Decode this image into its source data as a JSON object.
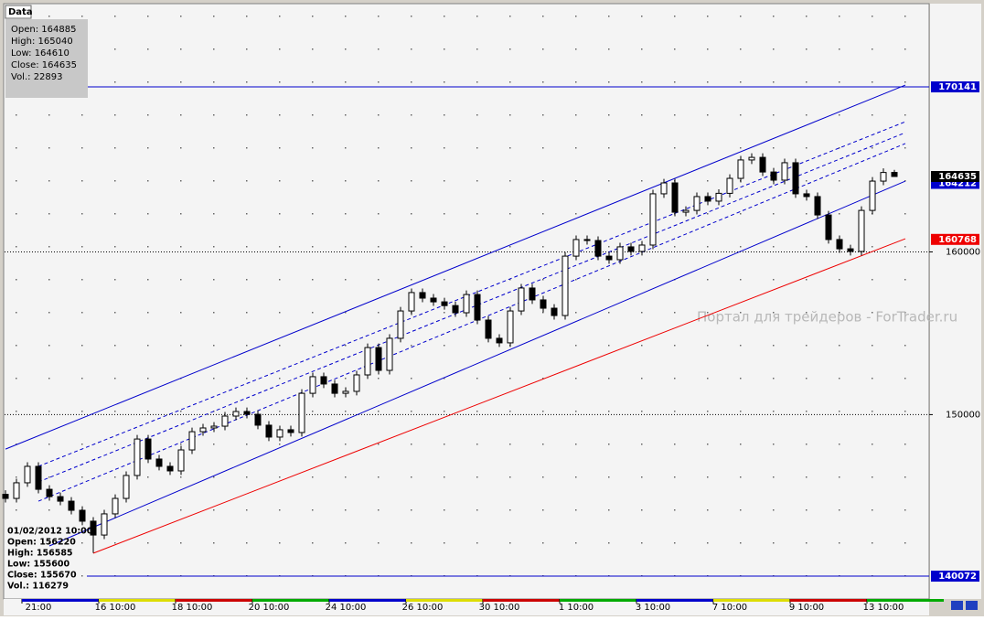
{
  "chart_data": {
    "type": "candlestick",
    "categories": [
      null,
      null,
      null,
      "21:00",
      null,
      null,
      null,
      null,
      null,
      null,
      "16 10:00",
      null,
      null,
      null,
      null,
      null,
      null,
      "18 10:00",
      null,
      null,
      null,
      null,
      null,
      null,
      "20 10:00",
      null,
      null,
      null,
      null,
      null,
      null,
      "24 10:00",
      null,
      null,
      null,
      null,
      null,
      null,
      "26 10:00",
      null,
      null,
      null,
      null,
      null,
      null,
      "30 10:00",
      null,
      null,
      null,
      null,
      null,
      null,
      "1 10:00",
      null,
      null,
      null,
      null,
      null,
      null,
      "3 10:00",
      null,
      null,
      null,
      null,
      null,
      null,
      "7 10:00",
      null,
      null,
      null,
      null,
      null,
      null,
      "9 10:00",
      null,
      null,
      null,
      null,
      null,
      null,
      "13 10:00",
      null
    ],
    "open": [
      145100,
      144850,
      145810,
      146820,
      145410,
      144960,
      144680,
      144120,
      143450,
      142600,
      143900,
      144850,
      146260,
      148500,
      147270,
      146820,
      146540,
      147830,
      148950,
      149180,
      149290,
      149910,
      150190,
      150020,
      149350,
      148620,
      149070,
      148900,
      151310,
      152330,
      151880,
      151310,
      151430,
      152440,
      154120,
      152720,
      154690,
      156370,
      157500,
      157160,
      156930,
      156700,
      156260,
      157380,
      155810,
      154690,
      154410,
      156370,
      157780,
      157050,
      156540,
      156090,
      159740,
      160760,
      160700,
      159740,
      159520,
      160310,
      160030,
      160420,
      163570,
      164240,
      162440,
      162550,
      163400,
      163120,
      163600,
      164520,
      165650,
      165810,
      164910,
      164410,
      165480,
      163570,
      163400,
      162270,
      160760,
      160190,
      160030,
      162550,
      164350,
      164885
    ],
    "high": [
      145350,
      146060,
      147070,
      147070,
      145660,
      145210,
      144930,
      144370,
      143700,
      144150,
      145100,
      146510,
      148750,
      148750,
      147520,
      147070,
      148080,
      149200,
      149430,
      149540,
      150160,
      150440,
      150440,
      150270,
      149600,
      149320,
      149320,
      151560,
      152580,
      152580,
      152130,
      151680,
      152690,
      154370,
      154370,
      154940,
      156620,
      157750,
      157750,
      157410,
      157180,
      156950,
      157630,
      157630,
      156060,
      154940,
      156620,
      158030,
      158030,
      157300,
      156790,
      159990,
      161010,
      161010,
      160950,
      159990,
      160560,
      160560,
      160670,
      163820,
      164490,
      164490,
      162800,
      163650,
      163650,
      163850,
      164770,
      165900,
      166060,
      166060,
      165160,
      165730,
      165730,
      163820,
      163650,
      162520,
      161010,
      160440,
      162800,
      164600,
      165130,
      165040
    ],
    "low": [
      144600,
      144600,
      145560,
      145160,
      144710,
      144430,
      143870,
      143200,
      141500,
      142350,
      143650,
      144600,
      146010,
      147020,
      146570,
      146290,
      146290,
      147580,
      148700,
      148930,
      149040,
      149660,
      149770,
      149100,
      148370,
      148370,
      148650,
      148650,
      151060,
      151630,
      151060,
      151060,
      151180,
      152190,
      152470,
      152470,
      154440,
      156120,
      156910,
      156680,
      156450,
      156010,
      156010,
      155560,
      154440,
      154160,
      154160,
      156120,
      156800,
      156290,
      155840,
      155840,
      159490,
      160450,
      159490,
      159270,
      159270,
      159780,
      159780,
      160170,
      163320,
      162190,
      162190,
      162300,
      162870,
      162870,
      163350,
      164270,
      165400,
      164660,
      164160,
      164160,
      163320,
      163150,
      162020,
      160510,
      159940,
      159780,
      159780,
      162300,
      164100,
      164610
    ],
    "close": [
      144850,
      145810,
      146820,
      145410,
      144960,
      144680,
      144120,
      143450,
      142600,
      143900,
      144850,
      146260,
      148500,
      147270,
      146820,
      146540,
      147830,
      148950,
      149180,
      149290,
      149910,
      150190,
      150020,
      149350,
      148620,
      149070,
      148900,
      151310,
      152330,
      151880,
      151310,
      151430,
      152440,
      154120,
      152720,
      154690,
      156370,
      157500,
      157160,
      156930,
      156700,
      156260,
      157380,
      155810,
      154690,
      154410,
      156370,
      157780,
      157050,
      156540,
      156090,
      159740,
      160760,
      160700,
      159740,
      159520,
      160310,
      160030,
      160420,
      163570,
      164240,
      162440,
      162550,
      163400,
      163120,
      163600,
      164520,
      165650,
      165810,
      164910,
      164410,
      165480,
      163570,
      163400,
      162270,
      160760,
      160190,
      160030,
      162550,
      164350,
      164880,
      164635
    ],
    "up_color": "#ffffff",
    "down_color": "#000000",
    "ylim": [
      138670,
      175200
    ],
    "yticks": [
      150000,
      160000
    ],
    "grid": true,
    "trendlines": [
      {
        "color": "#0000cc",
        "style": "solid",
        "start_index": 0,
        "end_index": 82,
        "start": 147880,
        "end": 170250
      },
      {
        "color": "#0000cc",
        "style": "solid",
        "start_index": 4,
        "end_index": 82,
        "start": 141930,
        "end": 164350
      },
      {
        "color": "#ee0000",
        "style": "solid",
        "start_index": 8,
        "end_index": 82,
        "start": 141480,
        "end": 160810
      },
      {
        "color": "#0000cc",
        "style": "dashed",
        "start_index": 3,
        "end_index": 82,
        "start": 146820,
        "end": 168000
      },
      {
        "color": "#0000cc",
        "style": "dashed",
        "start_index": 3,
        "end_index": 82,
        "start": 145860,
        "end": 167330
      },
      {
        "color": "#0000cc",
        "style": "dashed",
        "start_index": 3,
        "end_index": 82,
        "start": 144680,
        "end": 166660
      }
    ],
    "price_labels": [
      {
        "value": 170141,
        "color": "#0000cc",
        "line": true
      },
      {
        "value": 164212,
        "color": "#0000cc",
        "line": false
      },
      {
        "value": 164635,
        "color": "#000000",
        "line": false
      },
      {
        "value": 160768,
        "color": "#ee0000",
        "line": false
      },
      {
        "value": 140072,
        "color": "#0000cc",
        "line": true
      }
    ]
  },
  "data_window": {
    "title": "Data",
    "lines": [
      "Open: 164885",
      "High: 165040",
      "Low: 164610",
      "Close: 164635",
      "Vol.: 22893"
    ]
  },
  "cursor_info": {
    "lines": [
      "01/02/2012 10:00",
      "Open: 156220",
      "High: 156585",
      "Low: 155600",
      "Close: 155670",
      "Vol.: 116279"
    ]
  },
  "watermark": "Портал для трейдеров - ForTrader.ru"
}
